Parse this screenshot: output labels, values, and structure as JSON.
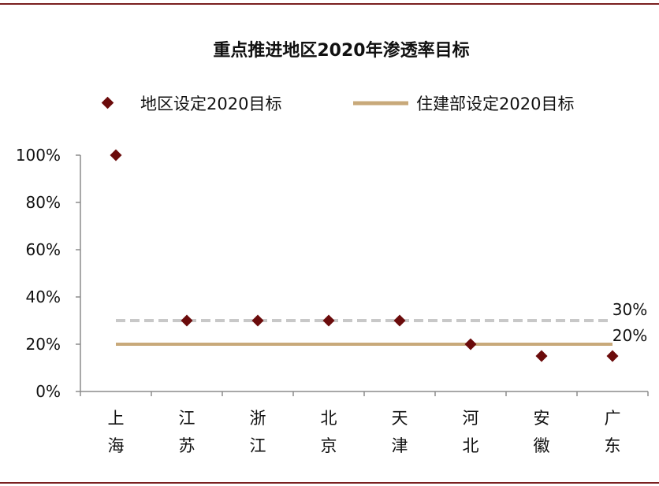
{
  "chart_data": {
    "type": "scatter",
    "title": "重点推进地区2020年渗透率目标",
    "xlabel": "",
    "ylabel": "",
    "ylim": [
      0,
      100
    ],
    "yticks": [
      "0%",
      "20%",
      "40%",
      "60%",
      "80%",
      "100%"
    ],
    "categories": [
      [
        "上",
        "海"
      ],
      [
        "江",
        "苏"
      ],
      [
        "浙",
        "江"
      ],
      [
        "北",
        "京"
      ],
      [
        "天",
        "津"
      ],
      [
        "河",
        "北"
      ],
      [
        "安",
        "徽"
      ],
      [
        "广",
        "东"
      ]
    ],
    "series": [
      {
        "name": "地区设定2020目标",
        "marker": "diamond",
        "color": "#6b0b0b",
        "values": [
          100,
          30,
          30,
          30,
          30,
          20,
          15,
          15
        ]
      },
      {
        "name": "住建部设定2020目标",
        "line": "solid",
        "color": "#c8a97a",
        "value": 20
      }
    ],
    "reference_lines": [
      {
        "value": 30,
        "label": "30%",
        "style": "dashed",
        "color": "#c8c8c8"
      },
      {
        "value": 20,
        "label": "20%",
        "style": "solid",
        "color": "#c8a97a"
      }
    ],
    "grid": false,
    "legend": "top"
  }
}
